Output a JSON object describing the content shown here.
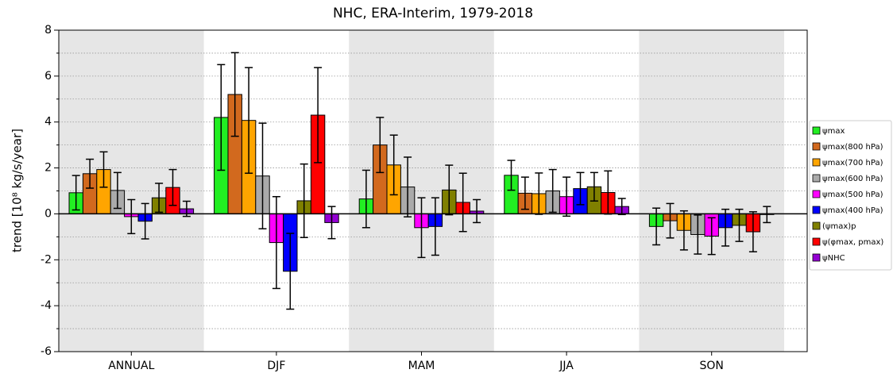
{
  "chart_data": {
    "type": "bar",
    "title": "NHC, ERA-Interim, 1979-2018",
    "y_label": "trend [10⁸ kg/s/year]",
    "categories": [
      "ANNUAL",
      "DJF",
      "MAM",
      "JJA",
      "SON"
    ],
    "ylim": [
      -6,
      8
    ],
    "yticks": [
      -6,
      -4,
      -2,
      0,
      2,
      4,
      6,
      8
    ],
    "yminorticks": [
      -5,
      -3,
      -1,
      1,
      3,
      5,
      7
    ],
    "grid": true,
    "band_color": "#e6e6e6",
    "legend": "right",
    "series": [
      {
        "name": "ψmax",
        "color": "#22ee22",
        "values": [
          0.92,
          4.2,
          0.65,
          1.68,
          -0.55
        ],
        "errors": [
          0.75,
          2.3,
          1.25,
          0.65,
          0.8
        ]
      },
      {
        "name": "ψmax(800 hPa)",
        "color": "#d2691e",
        "values": [
          1.75,
          5.2,
          3.0,
          0.9,
          -0.3
        ],
        "errors": [
          0.63,
          1.82,
          1.2,
          0.7,
          0.75
        ]
      },
      {
        "name": "ψmax(700 hPa)",
        "color": "#ffa500",
        "values": [
          1.93,
          4.07,
          2.13,
          0.88,
          -0.72
        ],
        "errors": [
          0.77,
          2.3,
          1.3,
          0.9,
          0.85
        ]
      },
      {
        "name": "ψmax(600 hPa)",
        "color": "#aaaaaa",
        "values": [
          1.02,
          1.65,
          1.17,
          1.0,
          -0.9
        ],
        "errors": [
          0.78,
          2.3,
          1.3,
          0.93,
          0.85
        ]
      },
      {
        "name": "ψmax(500 hPa)",
        "color": "#ff00ff",
        "values": [
          -0.12,
          -1.25,
          -0.6,
          0.75,
          -0.97
        ],
        "errors": [
          0.74,
          2.0,
          1.3,
          0.85,
          0.8
        ]
      },
      {
        "name": "ψmax(400 hPa)",
        "color": "#0000ff",
        "values": [
          -0.32,
          -2.5,
          -0.55,
          1.1,
          -0.6
        ],
        "errors": [
          0.77,
          1.65,
          1.25,
          0.7,
          0.8
        ]
      },
      {
        "name": "(ψmax)p",
        "color": "#808000",
        "values": [
          0.7,
          0.57,
          1.04,
          1.18,
          -0.5
        ],
        "errors": [
          0.63,
          1.6,
          1.08,
          0.62,
          0.7
        ]
      },
      {
        "name": "ψ(φmax, pmax)",
        "color": "#ff0000",
        "values": [
          1.15,
          4.3,
          0.5,
          0.93,
          -0.78
        ],
        "errors": [
          0.78,
          2.07,
          1.27,
          0.94,
          0.87
        ]
      },
      {
        "name": "ψNHC",
        "color": "#9400d3",
        "values": [
          0.22,
          -0.38,
          0.12,
          0.32,
          -0.03
        ],
        "errors": [
          0.33,
          0.7,
          0.5,
          0.35,
          0.35
        ]
      }
    ]
  }
}
